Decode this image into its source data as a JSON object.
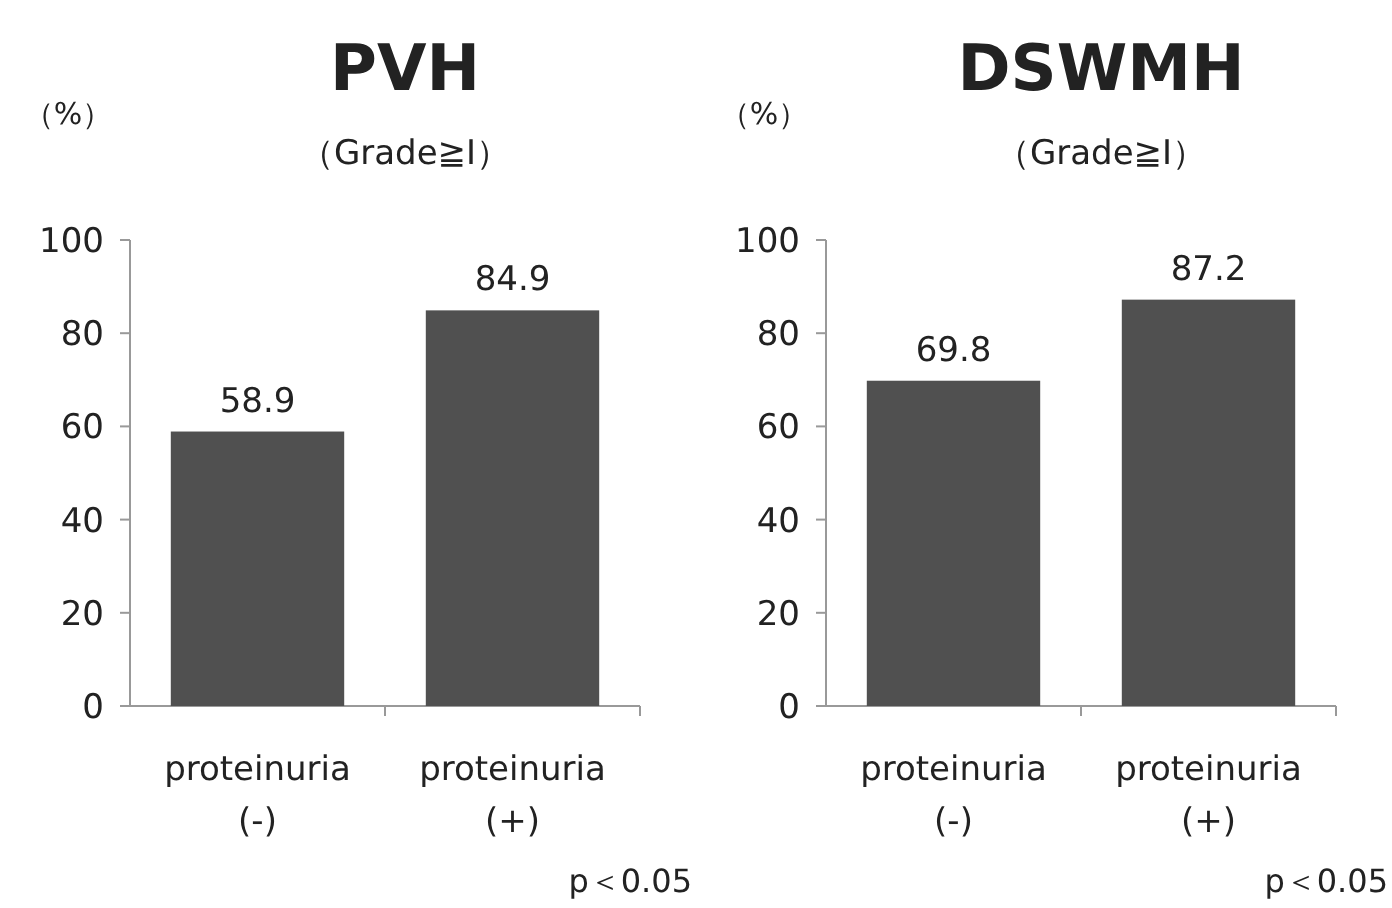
{
  "chart_data": [
    {
      "type": "bar",
      "title": "PVH",
      "subtitle": "（Grade≧I）",
      "ylabel": "（%）",
      "categories": [
        "proteinuria\n(-)",
        "proteinuria\n(+)"
      ],
      "values": [
        58.9,
        84.9
      ],
      "color": "#505050",
      "data_labels": true,
      "ylim": [
        0,
        100
      ],
      "yticks": [
        0,
        20,
        40,
        60,
        80,
        100
      ],
      "grid": false,
      "annotations": [
        "p＜0.05"
      ]
    },
    {
      "type": "bar",
      "title": "DSWMH",
      "subtitle": "（Grade≧I）",
      "ylabel": "（%）",
      "categories": [
        "proteinuria\n(-)",
        "proteinuria\n(+)"
      ],
      "values": [
        69.8,
        87.2
      ],
      "color": "#505050",
      "data_labels": true,
      "ylim": [
        0,
        100
      ],
      "yticks": [
        0,
        20,
        40,
        60,
        80,
        100
      ],
      "grid": false,
      "annotations": [
        "p＜0.05"
      ]
    }
  ]
}
